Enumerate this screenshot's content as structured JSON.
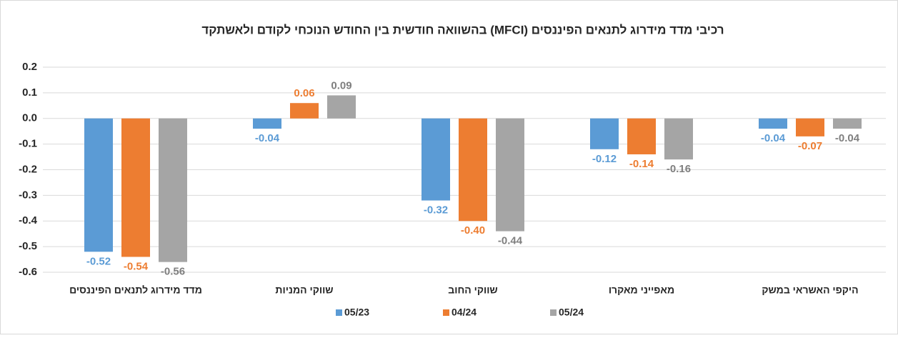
{
  "chart_data": {
    "type": "bar",
    "title": "רכיבי מדד מידרוג לתנאים הפיננסים (MFCI) בהשוואה חודשית בין החודש הנוכחי לקודם ולאשתקד",
    "categories": [
      "מדד מידרוג לתנאים הפיננסים",
      "שווקי המניות",
      "שווקי החוב",
      "מאפייני מאקרו",
      "היקפי האשראי במשק"
    ],
    "series": [
      {
        "name": "05/23",
        "color": "#5b9bd5",
        "values": [
          -0.52,
          -0.04,
          -0.32,
          -0.12,
          -0.04
        ],
        "value_labels": [
          "-0.52",
          "-0.04",
          "-0.32",
          "-0.12",
          "-0.04"
        ]
      },
      {
        "name": "04/24",
        "color": "#ed7d31",
        "values": [
          -0.54,
          0.06,
          -0.4,
          -0.14,
          -0.07
        ],
        "value_labels": [
          "-0.54",
          "0.06",
          "-0.40",
          "-0.14",
          "-0.07"
        ]
      },
      {
        "name": "05/24",
        "color": "#a5a5a5",
        "values": [
          -0.56,
          0.09,
          -0.44,
          -0.16,
          -0.04
        ],
        "value_labels": [
          "-0.56",
          "0.09",
          "-0.44",
          "-0.16",
          "-0.04"
        ]
      }
    ],
    "ylim": [
      -0.6,
      0.2
    ],
    "yticks": [
      0.2,
      0.1,
      {
        "value": 0,
        "label": "0.0"
      },
      -0.1,
      -0.2,
      -0.3,
      -0.4,
      -0.5,
      -0.6
    ],
    "grid": true,
    "legend": "bottom"
  }
}
